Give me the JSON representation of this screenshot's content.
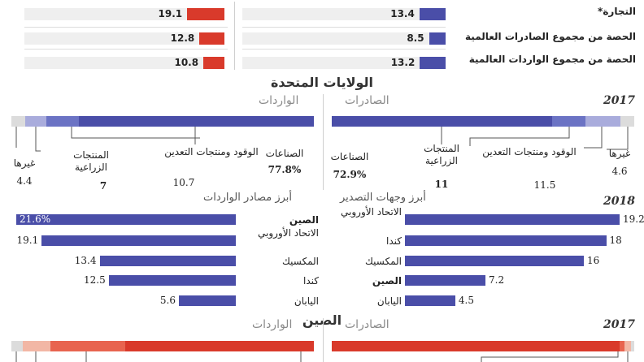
{
  "top_rows": [
    {
      "label": "التجارة*",
      "left_value": "19.1",
      "right_value": "13.4",
      "left": 19.1,
      "right": 13.4
    },
    {
      "label": "الحصة من مجموع الصادرات العالمية",
      "left_value": "12.8",
      "right_value": "8.5",
      "left": 12.8,
      "right": 8.5
    },
    {
      "label": "الحصة من مجموع الواردات العالمية",
      "left_value": "10.8",
      "right_value": "13.2",
      "left": 10.8,
      "right": 13.2
    }
  ],
  "us": {
    "title": "الولايات المتحدة",
    "exports_header": "الصادرات",
    "imports_header": "الواردات",
    "year_2017": "2017",
    "exports": [
      {
        "label": "الصناعات",
        "value": "72.9%",
        "bold": true,
        "pct": 72.9
      },
      {
        "label": "المنتجات الزراعية",
        "value": "11",
        "bold": true,
        "pct": 11
      },
      {
        "label": "الوقود ومنتجات التعدين",
        "value": "11.5",
        "bold": false,
        "pct": 11.5
      },
      {
        "label": "غيرها",
        "value": "4.6",
        "bold": false,
        "pct": 4.6
      }
    ],
    "imports": [
      {
        "label": "الصناعات",
        "value": "77.8%",
        "bold": true,
        "pct": 77.8
      },
      {
        "label": "الوقود ومنتجات التعدين",
        "value": "10.7",
        "bold": false,
        "pct": 10.7
      },
      {
        "label": "المنتجات الزراعية",
        "value": "7",
        "bold": true,
        "pct": 7
      },
      {
        "label": "غيرها",
        "value": "4.4",
        "bold": false,
        "pct": 4.4
      }
    ],
    "year_2018": "2018",
    "dest_header": "أبرز وجهات التصدير",
    "src_header": "أبرز مصادر الواردات",
    "destinations": [
      {
        "name": "الاتحاد الأوروبي",
        "value": "19.2%",
        "v": 19.2,
        "bold": false
      },
      {
        "name": "كندا",
        "value": "18",
        "v": 18,
        "bold": false
      },
      {
        "name": "المكسيك",
        "value": "16",
        "v": 16,
        "bold": false
      },
      {
        "name": "الصين",
        "value": "7.2",
        "v": 7.2,
        "bold": true
      },
      {
        "name": "اليابان",
        "value": "4.5",
        "v": 4.5,
        "bold": false
      }
    ],
    "sources": [
      {
        "name": "الصين",
        "value": "21.6%",
        "v": 21.6,
        "bold": true
      },
      {
        "name": "الاتحاد الأوروبي",
        "value": "19.1",
        "v": 19.1,
        "bold": false
      },
      {
        "name": "المكسيك",
        "value": "13.4",
        "v": 13.4,
        "bold": false
      },
      {
        "name": "كندا",
        "value": "12.5",
        "v": 12.5,
        "bold": false
      },
      {
        "name": "اليابان",
        "value": "5.6",
        "v": 5.6,
        "bold": false
      }
    ]
  },
  "china": {
    "title": "الصين",
    "exports_header": "الصادرات",
    "imports_header": "الواردات",
    "year_2017": "2017"
  },
  "colors": {
    "us_blue": "#4a4ea8",
    "us_mid": "#6b73c4",
    "us_light": "#a9acdc",
    "grey": "#dcdcdc",
    "china_red": "#d93a2b",
    "china_mid": "#e8644f",
    "china_light": "#f2b7a5"
  },
  "chart_data": [
    {
      "type": "bar",
      "categories": [
        "التجارة*",
        "الحصة من مجموع الصادرات العالمية",
        "الحصة من مجموع الواردات العالمية"
      ],
      "series": [
        {
          "values": [
            19.1,
            12.8,
            10.8
          ]
        },
        {
          "values": [
            13.4,
            8.5,
            13.2
          ]
        }
      ]
    },
    {
      "type": "bar",
      "title": "الولايات المتحدة",
      "categories": [
        "الصناعات",
        "المنتجات الزراعية",
        "الوقود ومنتجات التعدين",
        "غيرها"
      ],
      "series": [
        {
          "name": "الصادرات",
          "values": [
            72.9,
            11,
            11.5,
            4.6
          ]
        },
        {
          "name": "الواردات",
          "values": [
            77.8,
            7,
            10.7,
            4.4
          ]
        }
      ]
    },
    {
      "type": "bar",
      "title": "أبرز وجهات التصدير",
      "categories": [
        "الاتحاد الأوروبي",
        "كندا",
        "المكسيك",
        "الصين",
        "اليابان"
      ],
      "values": [
        19.2,
        18,
        16,
        7.2,
        4.5
      ]
    },
    {
      "type": "bar",
      "title": "أبرز مصادر الواردات",
      "categories": [
        "الصين",
        "الاتحاد الأوروبي",
        "المكسيك",
        "كندا",
        "اليابان"
      ],
      "values": [
        21.6,
        19.1,
        13.4,
        12.5,
        5.6
      ]
    }
  ]
}
